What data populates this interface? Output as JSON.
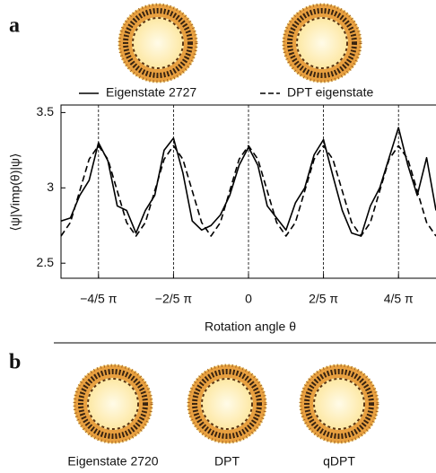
{
  "panel_labels": [
    "a",
    "b"
  ],
  "images_b": [
    "Eigenstate 2720",
    "DPT",
    "qDPT"
  ],
  "chart_data": {
    "type": "line",
    "y_label": "⟨ψ|Vimp(θ)|ψ⟩",
    "x_label": "Rotation angle θ",
    "x": [
      -3.1416,
      -2.9845,
      -2.8274,
      -2.6704,
      -2.5133,
      -2.3562,
      -2.1991,
      -2.042,
      -1.885,
      -1.7279,
      -1.5708,
      -1.4137,
      -1.2566,
      -1.0996,
      -0.9425,
      -0.7854,
      -0.6283,
      -0.4712,
      -0.3142,
      -0.1571,
      0,
      0.1571,
      0.3142,
      0.4712,
      0.6283,
      0.7854,
      0.9425,
      1.0996,
      1.2566,
      1.4137,
      1.5708,
      1.7279,
      1.885,
      2.042,
      2.1991,
      2.3562,
      2.5133,
      2.6704,
      2.8274,
      2.9845,
      3.1416
    ],
    "series": [
      {
        "name": "Eigenstate 2727",
        "color": "#000000",
        "dash": false,
        "values": [
          2.78,
          2.8,
          2.95,
          3.05,
          3.3,
          3.18,
          2.88,
          2.85,
          2.7,
          2.85,
          2.95,
          3.25,
          3.33,
          3.1,
          2.78,
          2.72,
          2.75,
          2.82,
          2.95,
          3.15,
          3.27,
          3.15,
          2.88,
          2.8,
          2.72,
          2.9,
          3.0,
          3.22,
          3.32,
          3.08,
          2.85,
          2.7,
          2.68,
          2.88,
          3.0,
          3.2,
          3.4,
          3.15,
          2.95,
          3.2,
          2.85
        ]
      },
      {
        "name": "DPT eigenstate",
        "color": "#000000",
        "dash": true,
        "values": [
          2.68,
          2.77,
          2.98,
          3.19,
          3.28,
          3.19,
          2.98,
          2.77,
          2.68,
          2.77,
          2.98,
          3.19,
          3.28,
          3.19,
          2.98,
          2.77,
          2.68,
          2.77,
          2.98,
          3.19,
          3.28,
          3.19,
          2.98,
          2.77,
          2.68,
          2.77,
          2.98,
          3.19,
          3.28,
          3.19,
          2.98,
          2.77,
          2.68,
          2.77,
          2.98,
          3.19,
          3.28,
          3.19,
          2.98,
          2.77,
          2.68
        ]
      }
    ],
    "xlim": [
      -3.1416,
      3.1416
    ],
    "ylim": [
      2.4,
      3.55
    ],
    "xticks": [
      {
        "value": -2.5133,
        "label": "−4/5 π"
      },
      {
        "value": -1.2566,
        "label": "−2/5 π"
      },
      0,
      {
        "value": 1.2566,
        "label": "2/5 π"
      },
      {
        "value": 2.5133,
        "label": "4/5 π"
      }
    ],
    "yticks": [
      2.5,
      3,
      3.5
    ],
    "x_grid": true
  }
}
